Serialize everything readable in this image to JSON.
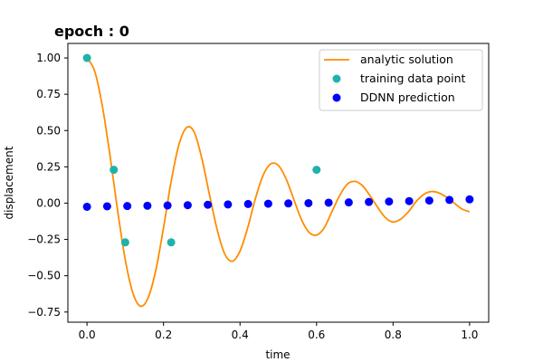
{
  "chart_data": {
    "type": "line",
    "title": "epoch : 0",
    "xlabel": "time",
    "ylabel": "displacement",
    "xlim": [
      -0.05,
      1.05
    ],
    "ylim": [
      -0.82,
      1.1
    ],
    "x_ticks": [
      {
        "value": 0.0,
        "label": "0.0"
      },
      {
        "value": 0.2,
        "label": "0.2"
      },
      {
        "value": 0.4,
        "label": "0.4"
      },
      {
        "value": 0.6,
        "label": "0.6"
      },
      {
        "value": 0.8,
        "label": "0.8"
      },
      {
        "value": 1.0,
        "label": "1.0"
      }
    ],
    "y_ticks": [
      {
        "value": 1.0,
        "label": "1.00"
      },
      {
        "value": 0.75,
        "label": "0.75"
      },
      {
        "value": 0.5,
        "label": "0.50"
      },
      {
        "value": 0.25,
        "label": "0.25"
      },
      {
        "value": 0.0,
        "label": "0.00"
      },
      {
        "value": -0.25,
        "label": "−0.25"
      },
      {
        "value": -0.5,
        "label": "−0.50"
      },
      {
        "value": -0.75,
        "label": "−0.75"
      }
    ],
    "grid": false,
    "legend_position": "top-right",
    "series": [
      {
        "name": "analytic solution",
        "kind": "line",
        "color": "#ff8c00",
        "x": [
          0.0,
          0.02,
          0.04,
          0.06,
          0.08,
          0.1,
          0.12,
          0.14,
          0.16,
          0.18,
          0.2,
          0.22,
          0.24,
          0.26,
          0.28,
          0.3,
          0.32,
          0.34,
          0.36,
          0.38,
          0.4,
          0.42,
          0.44,
          0.46,
          0.48,
          0.5,
          0.52,
          0.54,
          0.56,
          0.58,
          0.6,
          0.62,
          0.64,
          0.66,
          0.68,
          0.7,
          0.72,
          0.74,
          0.76,
          0.78,
          0.8,
          0.82,
          0.84,
          0.86,
          0.88,
          0.9,
          0.92,
          0.94,
          0.96,
          0.98,
          1.0
        ],
        "y": [
          1.0,
          0.91,
          0.67,
          0.33,
          -0.05,
          -0.39,
          -0.62,
          -0.71,
          -0.65,
          -0.46,
          -0.17,
          0.15,
          0.4,
          0.52,
          0.49,
          0.31,
          0.06,
          -0.18,
          -0.35,
          -0.4,
          -0.33,
          -0.17,
          0.03,
          0.19,
          0.27,
          0.26,
          0.17,
          0.03,
          -0.11,
          -0.2,
          -0.22,
          -0.17,
          -0.06,
          0.05,
          0.13,
          0.15,
          0.12,
          0.05,
          -0.03,
          -0.1,
          -0.13,
          -0.11,
          -0.06,
          0.01,
          0.06,
          0.08,
          0.07,
          0.04,
          0.0,
          -0.04,
          -0.06
        ]
      },
      {
        "name": "training data point",
        "kind": "scatter",
        "color": "#20b2aa",
        "x": [
          0.0,
          0.07,
          0.1,
          0.22,
          0.6
        ],
        "y": [
          1.0,
          0.23,
          -0.27,
          -0.27,
          0.23
        ]
      },
      {
        "name": "DDNN prediction",
        "kind": "scatter",
        "color": "#0000ff",
        "x": [
          0.0,
          0.0526,
          0.1053,
          0.1579,
          0.2105,
          0.2632,
          0.3158,
          0.3684,
          0.4211,
          0.4737,
          0.5263,
          0.5789,
          0.6316,
          0.6842,
          0.7368,
          0.7895,
          0.8421,
          0.8947,
          0.9474,
          1.0
        ],
        "y": [
          -0.025,
          -0.022,
          -0.02,
          -0.018,
          -0.016,
          -0.014,
          -0.011,
          -0.009,
          -0.006,
          -0.004,
          -0.002,
          0.0,
          0.003,
          0.005,
          0.008,
          0.011,
          0.014,
          0.018,
          0.022,
          0.026
        ]
      }
    ]
  }
}
